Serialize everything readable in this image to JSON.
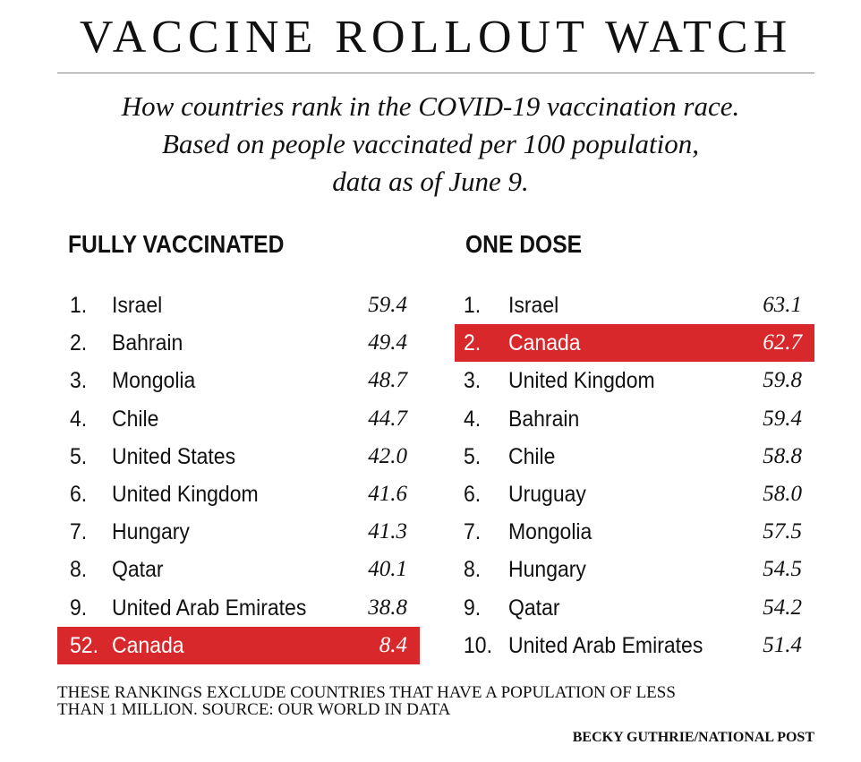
{
  "title": "VACCINE ROLLOUT WATCH",
  "subtitle_lines": [
    "How countries rank in the COVID-19 vaccination race.",
    "Based on people vaccinated per 100 population,",
    "data as of June 9."
  ],
  "footnote_lines": [
    "THESE RANKINGS EXCLUDE COUNTRIES THAT HAVE A POPULATION OF LESS",
    "THAN 1 MILLION. SOURCE: OUR WORLD IN DATA"
  ],
  "credit": "BECKY GUTHRIE/NATIONAL POST",
  "colors": {
    "highlight": "#d9282b",
    "text": "#111111",
    "background": "#ffffff"
  },
  "chart_data": {
    "type": "table",
    "title": "VACCINE ROLLOUT WATCH",
    "unit": "people vaccinated per 100 population",
    "tables": [
      {
        "heading": "FULLY VACCINATED",
        "rows": [
          {
            "rank": "1.",
            "country": "Israel",
            "value": "59.4",
            "highlight": false
          },
          {
            "rank": "2.",
            "country": "Bahrain",
            "value": "49.4",
            "highlight": false
          },
          {
            "rank": "3.",
            "country": "Mongolia",
            "value": "48.7",
            "highlight": false
          },
          {
            "rank": "4.",
            "country": "Chile",
            "value": "44.7",
            "highlight": false
          },
          {
            "rank": "5.",
            "country": "United States",
            "value": "42.0",
            "highlight": false
          },
          {
            "rank": "6.",
            "country": "United Kingdom",
            "value": "41.6",
            "highlight": false
          },
          {
            "rank": "7.",
            "country": "Hungary",
            "value": "41.3",
            "highlight": false
          },
          {
            "rank": "8.",
            "country": "Qatar",
            "value": "40.1",
            "highlight": false
          },
          {
            "rank": "9.",
            "country": "United Arab Emirates",
            "value": "38.8",
            "highlight": false
          },
          {
            "rank": "52.",
            "country": "Canada",
            "value": "8.4",
            "highlight": true
          }
        ]
      },
      {
        "heading": "ONE DOSE",
        "rows": [
          {
            "rank": "1.",
            "country": "Israel",
            "value": "63.1",
            "highlight": false
          },
          {
            "rank": "2.",
            "country": "Canada",
            "value": "62.7",
            "highlight": true
          },
          {
            "rank": "3.",
            "country": "United Kingdom",
            "value": "59.8",
            "highlight": false
          },
          {
            "rank": "4.",
            "country": "Bahrain",
            "value": "59.4",
            "highlight": false
          },
          {
            "rank": "5.",
            "country": "Chile",
            "value": "58.8",
            "highlight": false
          },
          {
            "rank": "6.",
            "country": "Uruguay",
            "value": "58.0",
            "highlight": false
          },
          {
            "rank": "7.",
            "country": "Mongolia",
            "value": "57.5",
            "highlight": false
          },
          {
            "rank": "8.",
            "country": "Hungary",
            "value": "54.5",
            "highlight": false
          },
          {
            "rank": "9.",
            "country": "Qatar",
            "value": "54.2",
            "highlight": false
          },
          {
            "rank": "10.",
            "country": "United Arab Emirates",
            "value": "51.4",
            "highlight": false
          }
        ]
      }
    ]
  }
}
